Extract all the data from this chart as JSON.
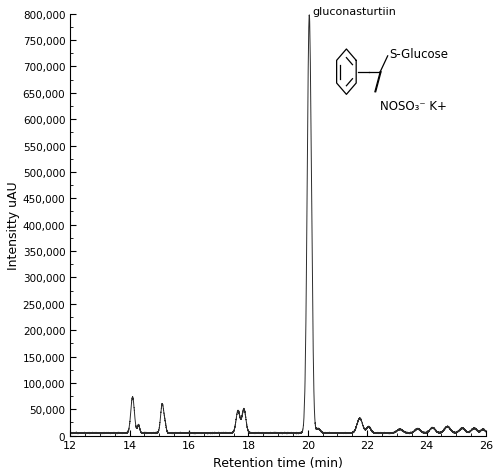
{
  "title": "",
  "xlabel": "Retention time (min)",
  "ylabel": "Intensitty uAU",
  "xlim": [
    12,
    26
  ],
  "ylim": [
    0,
    800000
  ],
  "yticks": [
    0,
    50000,
    100000,
    150000,
    200000,
    250000,
    300000,
    350000,
    400000,
    450000,
    500000,
    550000,
    600000,
    650000,
    700000,
    750000,
    800000
  ],
  "ytick_labels": [
    "0",
    "50,000",
    "100,000",
    "150,000",
    "200,000",
    "250,000",
    "300,000",
    "350,000",
    "400,000",
    "450,000",
    "500,000",
    "550,000",
    "600,000",
    "650,000",
    "700,000",
    "750,000",
    "800,000"
  ],
  "xticks": [
    12,
    14,
    16,
    18,
    20,
    22,
    24,
    26
  ],
  "line_color": "#2d2d2d",
  "background_color": "#ffffff",
  "annotation_text": "gluconasturtiin",
  "baseline": 5000
}
